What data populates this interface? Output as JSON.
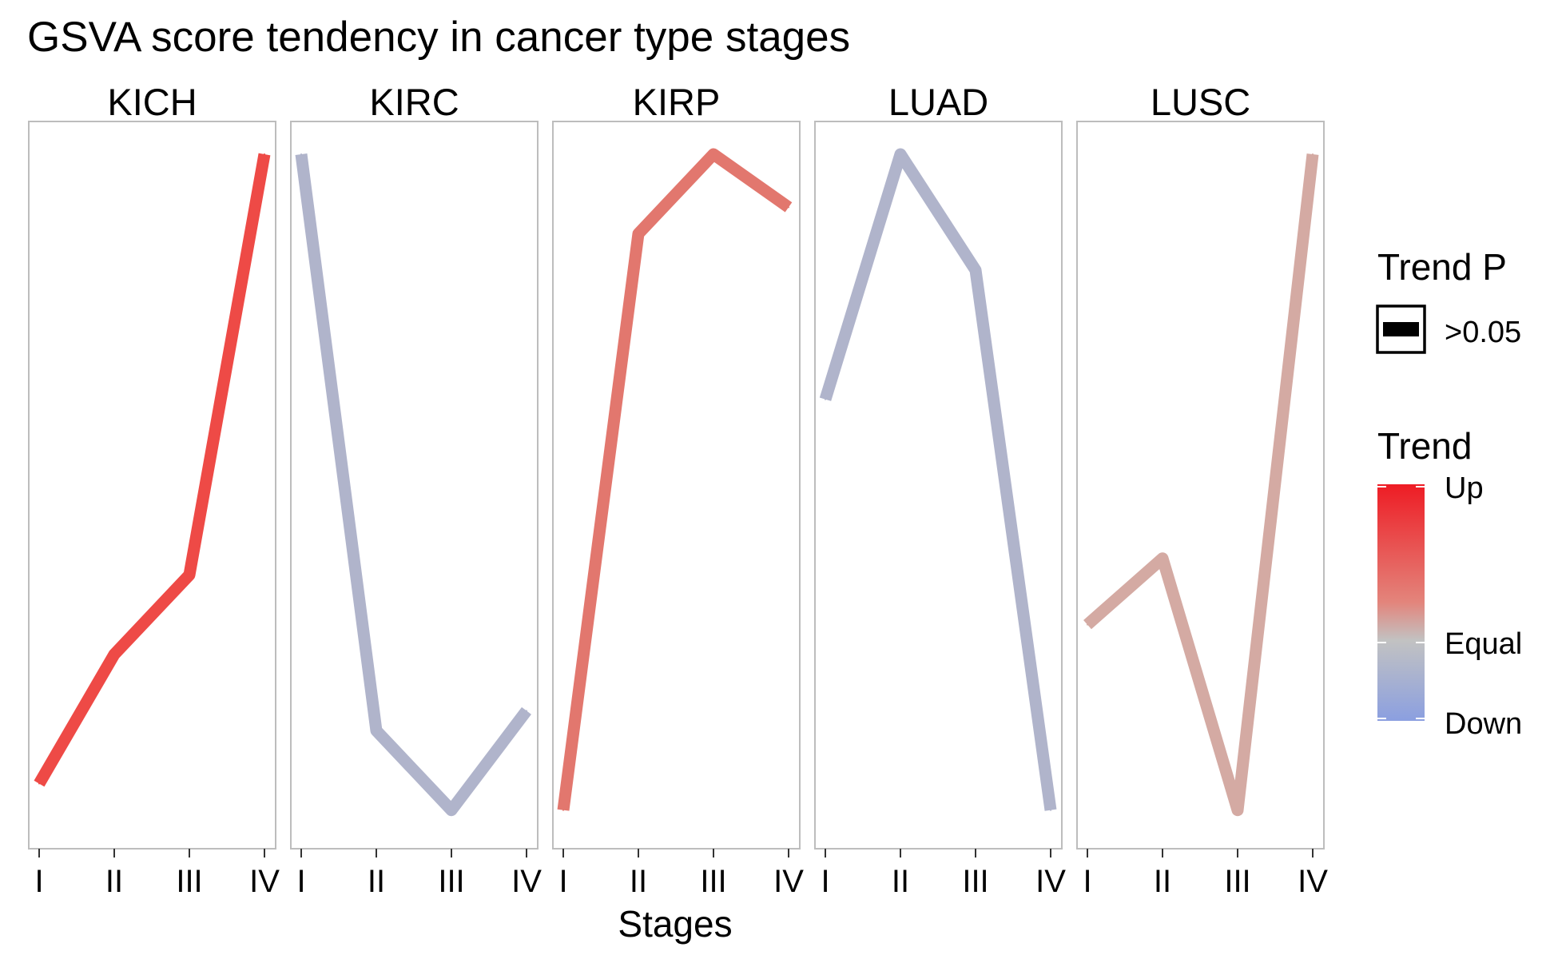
{
  "chart_data": {
    "type": "line",
    "title": "GSVA score tendency in cancer type stages",
    "xlabel": "Stages",
    "ylabel": "",
    "categories": [
      "I",
      "II",
      "III",
      "IV"
    ],
    "grid": false,
    "y_axis_shown": false,
    "ylim": [
      0,
      1
    ],
    "panels": [
      {
        "name": "KICH",
        "values": [
          0.05,
          0.245,
          0.365,
          1.0
        ],
        "trend": 1.0,
        "color": "#ee4a46"
      },
      {
        "name": "KIRC",
        "values": [
          1.0,
          0.13,
          0.01,
          0.16
        ],
        "trend": -0.15,
        "color": "#b0b4cb"
      },
      {
        "name": "KIRP",
        "values": [
          0.01,
          0.88,
          1.0,
          0.92
        ],
        "trend": 0.75,
        "color": "#e2776e"
      },
      {
        "name": "LUAD",
        "values": [
          0.63,
          1.0,
          0.825,
          0.01
        ],
        "trend": -0.15,
        "color": "#b0b4cb"
      },
      {
        "name": "LUSC",
        "values": [
          0.29,
          0.39,
          0.01,
          1.0
        ],
        "trend": 0.3,
        "color": "#d4aaa3"
      }
    ],
    "legend": {
      "placement": "right",
      "trend_p": {
        "title": "Trend P",
        "entries": [
          {
            "label": ">0.05",
            "color": "#000000"
          }
        ]
      },
      "trend": {
        "title": "Trend",
        "labels": [
          "Up",
          "Equal",
          "Down"
        ],
        "colors": {
          "up": "#ee1c24",
          "mid": "#c2c2c2",
          "down": "#8b9fe0"
        }
      }
    }
  }
}
